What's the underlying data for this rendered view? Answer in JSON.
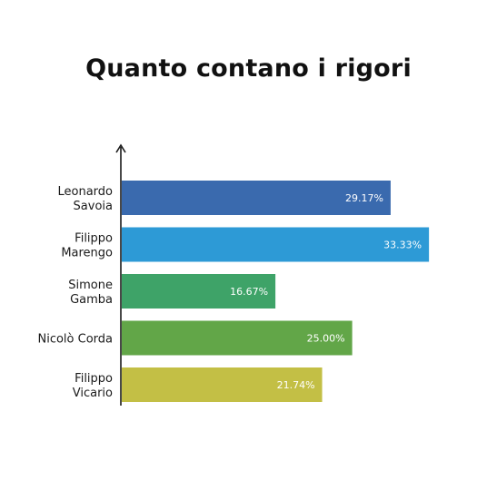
{
  "chart_data": {
    "type": "bar",
    "orientation": "horizontal",
    "title": "Quanto contano i rigori",
    "categories": [
      [
        "Leonardo",
        "Savoia"
      ],
      [
        "Filippo",
        "Marengo"
      ],
      [
        "Simone",
        "Gamba"
      ],
      [
        "Nicolò Corda"
      ],
      [
        "Filippo",
        "Vicario"
      ]
    ],
    "values": [
      29.17,
      33.33,
      16.67,
      25.0,
      21.74
    ],
    "value_labels": [
      "29.17%",
      "33.33%",
      "16.67%",
      "25.00%",
      "21.74%"
    ],
    "colors": [
      "#3a6aae",
      "#2d9ad6",
      "#3ea368",
      "#62a648",
      "#c3bf45"
    ],
    "xlim": [
      0,
      34.5
    ],
    "xlabel": "",
    "ylabel": "",
    "grid": false
  }
}
